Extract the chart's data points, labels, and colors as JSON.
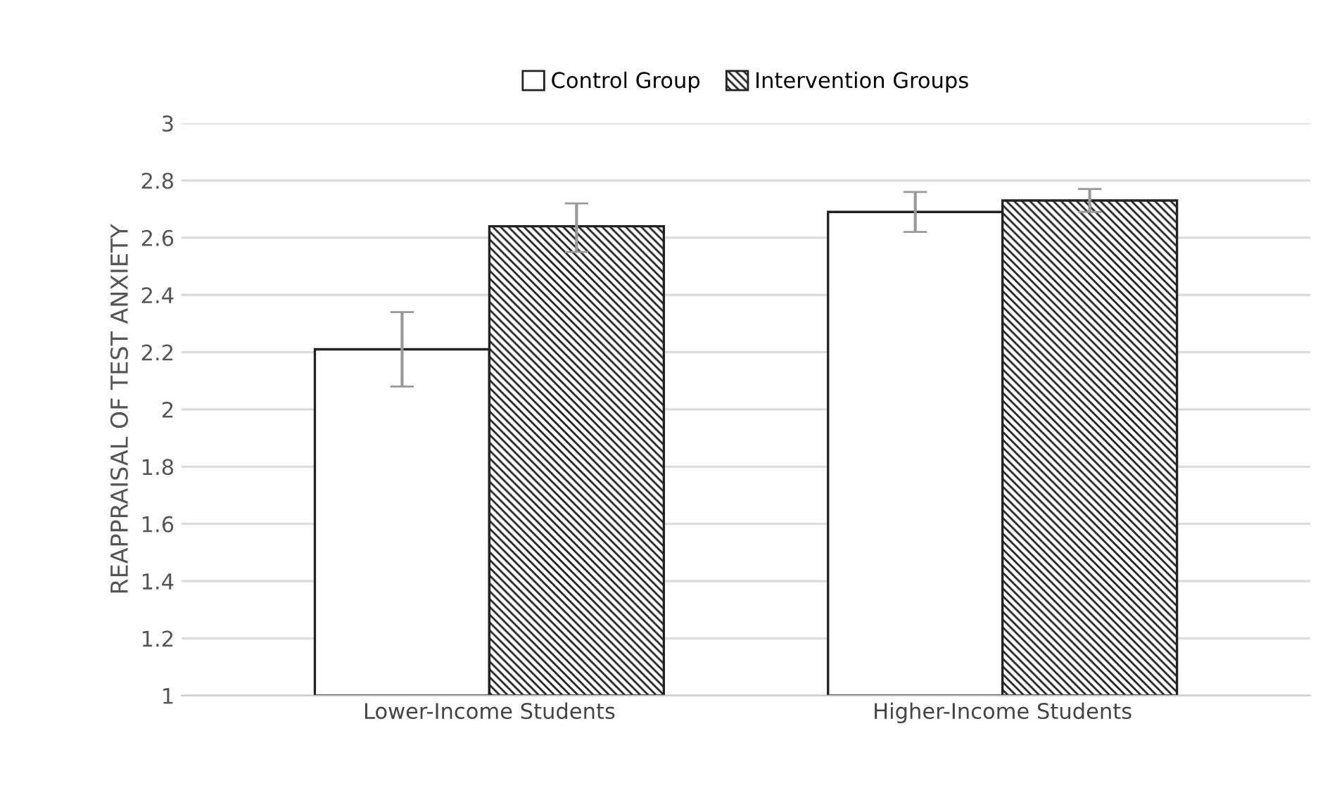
{
  "chart_data": {
    "type": "bar",
    "ylabel": "REAPPRAISAL OF TEST ANXIETY",
    "categories": [
      "Lower-Income Students",
      "Higher-Income Students"
    ],
    "series": [
      {
        "name": "Control Group",
        "color": "#ffffff",
        "values": [
          2.21,
          2.69
        ],
        "errors": [
          [
            2.08,
            2.34
          ],
          [
            2.62,
            2.76
          ]
        ]
      },
      {
        "name": "Intervention Groups",
        "color": "#222222",
        "values": [
          2.64,
          2.73
        ],
        "errors": [
          [
            2.55,
            2.72
          ],
          [
            2.69,
            2.77
          ]
        ]
      }
    ],
    "ylim": [
      1,
      3
    ],
    "yticks": [
      1,
      1.2,
      1.4,
      1.6,
      1.8,
      2,
      2.2,
      2.4,
      2.6,
      2.8,
      3
    ],
    "grid": "y",
    "legend": "top"
  }
}
